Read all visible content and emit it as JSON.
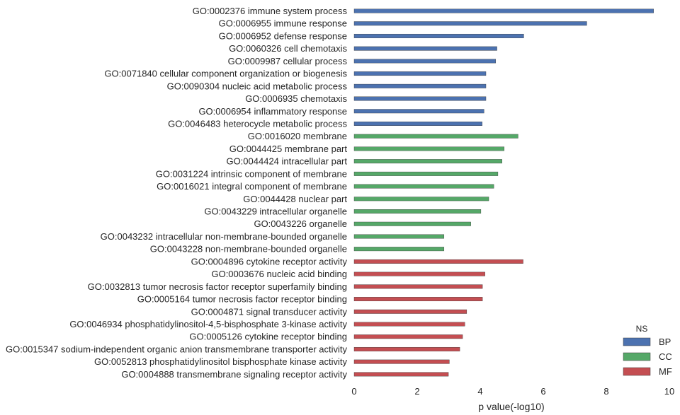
{
  "chart_data": {
    "type": "bar",
    "orientation": "horizontal",
    "xlabel": "p value(-log10)",
    "ylabel": "",
    "xlim": [
      0,
      10
    ],
    "xticks": [
      0,
      2,
      4,
      6,
      8,
      10
    ],
    "grid": false,
    "legend": {
      "title": "NS",
      "placement": "bottom-right",
      "entries": [
        {
          "name": "BP",
          "color": "#4c72b0"
        },
        {
          "name": "CC",
          "color": "#55a868"
        },
        {
          "name": "MF",
          "color": "#c44e52"
        }
      ]
    },
    "bars": [
      {
        "label": "GO:0002376 immune system process",
        "value": 9.5,
        "ns": "BP"
      },
      {
        "label": "GO:0006955 immune response",
        "value": 7.38,
        "ns": "BP"
      },
      {
        "label": "GO:0006952 defense response",
        "value": 5.38,
        "ns": "BP"
      },
      {
        "label": "GO:0060326 cell chemotaxis",
        "value": 4.53,
        "ns": "BP"
      },
      {
        "label": "GO:0009987 cellular process",
        "value": 4.49,
        "ns": "BP"
      },
      {
        "label": "GO:0071840 cellular component organization or biogenesis",
        "value": 4.18,
        "ns": "BP"
      },
      {
        "label": "GO:0090304 nucleic acid metabolic process",
        "value": 4.18,
        "ns": "BP"
      },
      {
        "label": "GO:0006935 chemotaxis",
        "value": 4.18,
        "ns": "BP"
      },
      {
        "label": "GO:0006954 inflammatory response",
        "value": 4.12,
        "ns": "BP"
      },
      {
        "label": "GO:0046483 heterocycle metabolic process",
        "value": 4.06,
        "ns": "BP"
      },
      {
        "label": "GO:0016020 membrane",
        "value": 5.2,
        "ns": "CC"
      },
      {
        "label": "GO:0044425 membrane part",
        "value": 4.76,
        "ns": "CC"
      },
      {
        "label": "GO:0044424 intracellular part",
        "value": 4.69,
        "ns": "CC"
      },
      {
        "label": "GO:0031224 intrinsic component of membrane",
        "value": 4.56,
        "ns": "CC"
      },
      {
        "label": "GO:0016021 integral component of membrane",
        "value": 4.43,
        "ns": "CC"
      },
      {
        "label": "GO:0044428 nuclear part",
        "value": 4.27,
        "ns": "CC"
      },
      {
        "label": "GO:0043229 intracellular organelle",
        "value": 4.02,
        "ns": "CC"
      },
      {
        "label": "GO:0043226 organelle",
        "value": 3.7,
        "ns": "CC"
      },
      {
        "label": "GO:0043232 intracellular non-membrane-bounded organelle",
        "value": 2.85,
        "ns": "CC"
      },
      {
        "label": "GO:0043228 non-membrane-bounded organelle",
        "value": 2.85,
        "ns": "CC"
      },
      {
        "label": "GO:0004896 cytokine receptor activity",
        "value": 5.36,
        "ns": "MF"
      },
      {
        "label": "GO:0003676 nucleic acid binding",
        "value": 4.15,
        "ns": "MF"
      },
      {
        "label": "GO:0032813 tumor necrosis factor receptor superfamily binding",
        "value": 4.07,
        "ns": "MF"
      },
      {
        "label": "GO:0005164 tumor necrosis factor receptor binding",
        "value": 4.07,
        "ns": "MF"
      },
      {
        "label": "GO:0004871 signal transducer activity",
        "value": 3.57,
        "ns": "MF"
      },
      {
        "label": "GO:0046934 phosphatidylinositol-4,5-bisphosphate 3-kinase activity",
        "value": 3.51,
        "ns": "MF"
      },
      {
        "label": "GO:0005126 cytokine receptor binding",
        "value": 3.44,
        "ns": "MF"
      },
      {
        "label": "GO:0015347 sodium-independent organic anion transmembrane transporter activity",
        "value": 3.35,
        "ns": "MF"
      },
      {
        "label": "GO:0052813 phosphatidylinositol bisphosphate kinase activity",
        "value": 3.02,
        "ns": "MF"
      },
      {
        "label": "GO:0004888 transmembrane signaling receptor activity",
        "value": 2.99,
        "ns": "MF"
      }
    ]
  }
}
